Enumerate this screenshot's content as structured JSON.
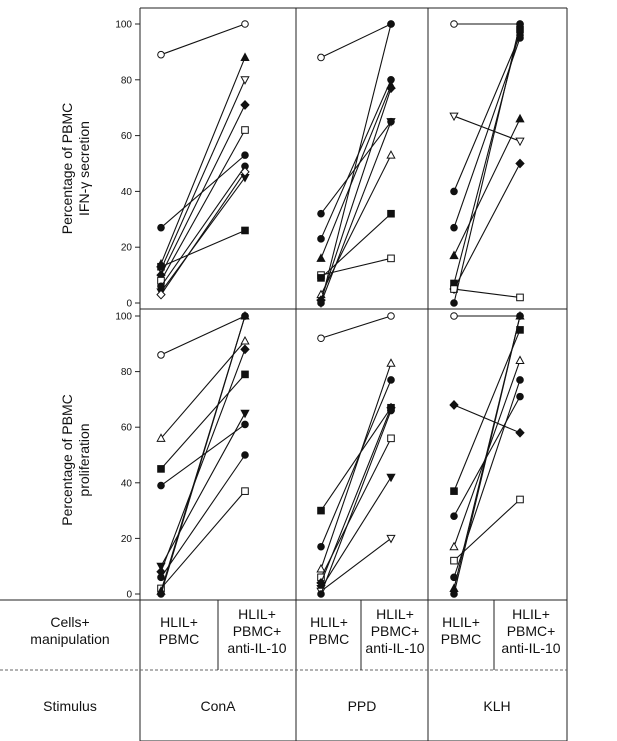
{
  "chart_data": {
    "type": "line",
    "description_rows": {
      "row1_label": [
        "Cells+",
        "manipulation"
      ],
      "row2_label": "Stimulus",
      "conditions": [
        [
          "HLIL+",
          "PBMC"
        ],
        [
          "HLIL+",
          "PBMC+",
          "anti-IL-10"
        ]
      ],
      "stimuli": [
        "ConA",
        "PPD",
        "KLH"
      ]
    },
    "y_ticks": [
      "0",
      "20",
      "40",
      "60",
      "80",
      "100"
    ],
    "ylim": [
      0,
      100
    ],
    "panels": [
      {
        "ylabel": [
          "Percentage of PBMC",
          "IFN-γ secretion"
        ],
        "groups": [
          {
            "stimulus": "ConA",
            "series": [
              {
                "marker": "circle-open",
                "values": [
                  89,
                  100
                ]
              },
              {
                "marker": "circle-filled",
                "values": [
                  27,
                  53
                ]
              },
              {
                "marker": "triangle-up-filled",
                "values": [
                  14,
                  88
                ]
              },
              {
                "marker": "triangle-down-open",
                "values": [
                  12,
                  80
                ]
              },
              {
                "marker": "diamond-filled",
                "values": [
                  10,
                  71
                ]
              },
              {
                "marker": "square-open",
                "values": [
                  8,
                  62
                ]
              },
              {
                "marker": "circle-filled",
                "values": [
                  6,
                  49
                ]
              },
              {
                "marker": "triangle-down-filled",
                "values": [
                  4,
                  45
                ]
              },
              {
                "marker": "square-filled",
                "values": [
                  13,
                  26
                ]
              },
              {
                "marker": "diamond-open",
                "values": [
                  3,
                  47
                ]
              }
            ]
          },
          {
            "stimulus": "PPD",
            "series": [
              {
                "marker": "circle-open",
                "values": [
                  88,
                  100
                ]
              },
              {
                "marker": "circle-filled",
                "values": [
                  32,
                  65
                ]
              },
              {
                "marker": "circle-filled",
                "values": [
                  23,
                  80
                ]
              },
              {
                "marker": "triangle-up-filled",
                "values": [
                  16,
                  78
                ]
              },
              {
                "marker": "square-open",
                "values": [
                  10,
                  16
                ]
              },
              {
                "marker": "square-filled",
                "values": [
                  9,
                  32
                ]
              },
              {
                "marker": "triangle-up-open",
                "values": [
                  3,
                  53
                ]
              },
              {
                "marker": "diamond-filled",
                "values": [
                  1,
                  77
                ]
              },
              {
                "marker": "circle-filled",
                "values": [
                  0,
                  100
                ]
              },
              {
                "marker": "triangle-down-filled",
                "values": [
                  0,
                  65
                ]
              }
            ]
          },
          {
            "stimulus": "KLH",
            "series": [
              {
                "marker": "circle-open",
                "values": [
                  100,
                  100
                ]
              },
              {
                "marker": "triangle-down-open",
                "values": [
                  67,
                  58
                ]
              },
              {
                "marker": "circle-filled",
                "values": [
                  40,
                  96
                ]
              },
              {
                "marker": "circle-filled",
                "values": [
                  27,
                  95
                ]
              },
              {
                "marker": "triangle-up-filled",
                "values": [
                  17,
                  66
                ]
              },
              {
                "marker": "square-filled",
                "values": [
                  7,
                  98
                ]
              },
              {
                "marker": "diamond-filled",
                "values": [
                  5,
                  50
                ]
              },
              {
                "marker": "square-open",
                "values": [
                  5,
                  2
                ]
              },
              {
                "marker": "circle-filled",
                "values": [
                  0,
                  100
                ]
              }
            ]
          }
        ]
      },
      {
        "ylabel": [
          "Percentage of PBMC",
          "proliferation"
        ],
        "groups": [
          {
            "stimulus": "ConA",
            "series": [
              {
                "marker": "circle-open",
                "values": [
                  86,
                  100
                ]
              },
              {
                "marker": "triangle-up-open",
                "values": [
                  56,
                  91
                ]
              },
              {
                "marker": "square-filled",
                "values": [
                  45,
                  79
                ]
              },
              {
                "marker": "circle-filled",
                "values": [
                  39,
                  61
                ]
              },
              {
                "marker": "triangle-down-filled",
                "values": [
                  10,
                  65
                ]
              },
              {
                "marker": "diamond-filled",
                "values": [
                  8,
                  88
                ]
              },
              {
                "marker": "circle-filled",
                "values": [
                  6,
                  50
                ]
              },
              {
                "marker": "square-open",
                "values": [
                  2,
                  37
                ]
              },
              {
                "marker": "triangle-up-filled",
                "values": [
                  1,
                  100
                ]
              },
              {
                "marker": "circle-filled",
                "values": [
                  0,
                  100
                ]
              }
            ]
          },
          {
            "stimulus": "PPD",
            "series": [
              {
                "marker": "circle-open",
                "values": [
                  92,
                  100
                ]
              },
              {
                "marker": "square-filled",
                "values": [
                  30,
                  67
                ]
              },
              {
                "marker": "circle-filled",
                "values": [
                  17,
                  77
                ]
              },
              {
                "marker": "triangle-up-open",
                "values": [
                  9,
                  83
                ]
              },
              {
                "marker": "square-open",
                "values": [
                  6,
                  56
                ]
              },
              {
                "marker": "diamond-filled",
                "values": [
                  4,
                  67
                ]
              },
              {
                "marker": "triangle-down-filled",
                "values": [
                  2,
                  42
                ]
              },
              {
                "marker": "triangle-down-open",
                "values": [
                  1,
                  20
                ]
              },
              {
                "marker": "circle-filled",
                "values": [
                  0,
                  66
                ]
              }
            ]
          },
          {
            "stimulus": "KLH",
            "series": [
              {
                "marker": "circle-open",
                "values": [
                  100,
                  100
                ]
              },
              {
                "marker": "diamond-filled",
                "values": [
                  68,
                  58
                ]
              },
              {
                "marker": "square-filled",
                "values": [
                  37,
                  95
                ]
              },
              {
                "marker": "circle-filled",
                "values": [
                  28,
                  71
                ]
              },
              {
                "marker": "triangle-up-open",
                "values": [
                  17,
                  84
                ]
              },
              {
                "marker": "square-open",
                "values": [
                  12,
                  34
                ]
              },
              {
                "marker": "circle-filled",
                "values": [
                  6,
                  77
                ]
              },
              {
                "marker": "triangle-up-filled",
                "values": [
                  2,
                  100
                ]
              },
              {
                "marker": "circle-filled",
                "values": [
                  0,
                  100
                ]
              }
            ]
          }
        ]
      }
    ]
  }
}
